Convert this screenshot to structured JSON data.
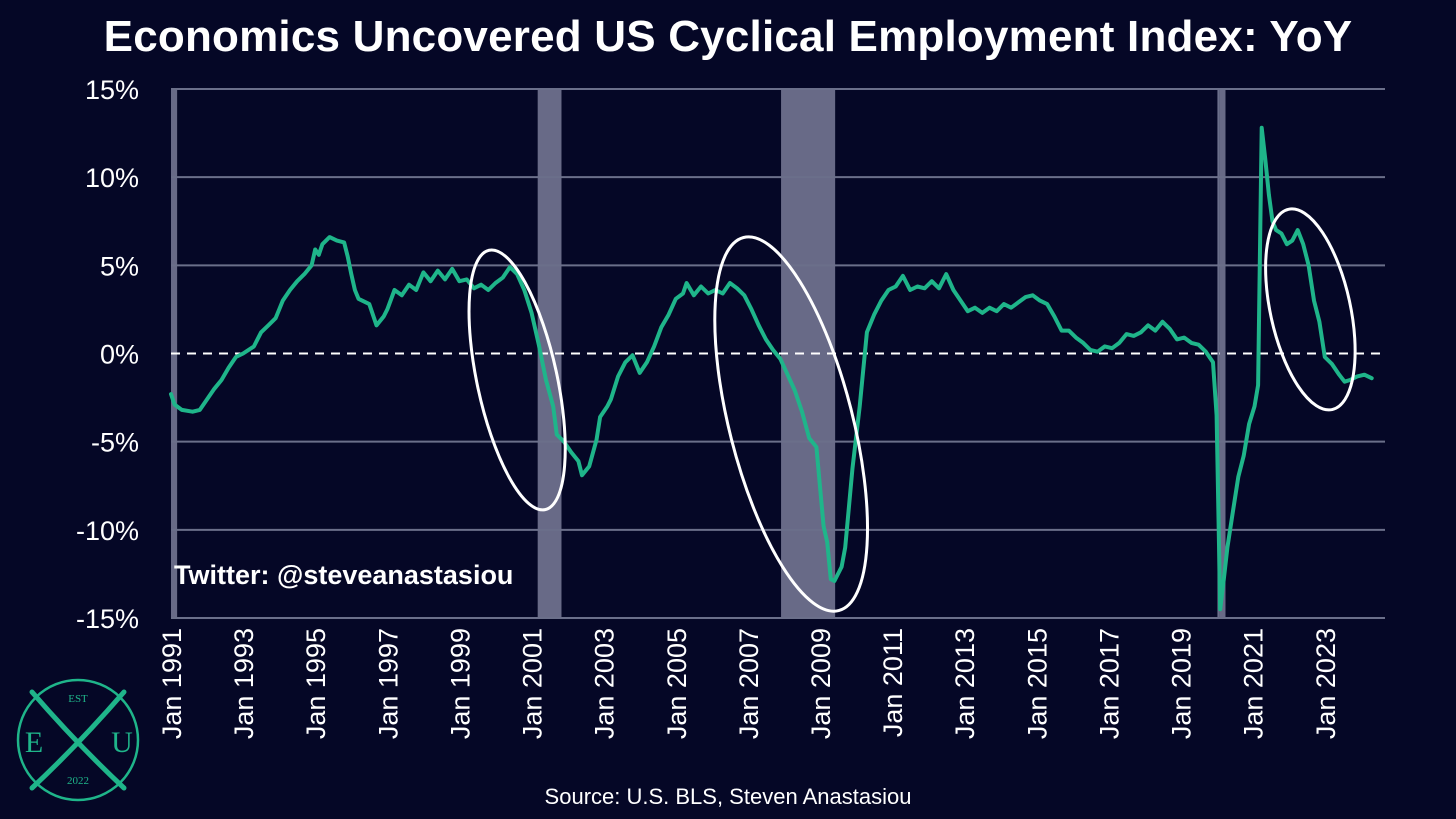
{
  "colors": {
    "background": "#050726",
    "line": "#1fb58a",
    "grid": "#6b6f8a",
    "recession_band": "#8a8ca8",
    "zero_line": "#ffffff",
    "ellipse": "#ffffff",
    "text": "#ffffff",
    "logo": "#1fb58a"
  },
  "handle": "Twitter: @steveanastasiou",
  "source": "Source: U.S. BLS, Steven Anastasiou",
  "logo": {
    "top": "EST",
    "left": "E",
    "right": "U",
    "bottom": "2022",
    "icon": "crossed-x-logo-icon"
  },
  "chart_data": {
    "type": "line",
    "title": "Economics Uncovered US Cyclical Employment Index: YoY",
    "xlabel": "",
    "ylabel": "",
    "ylim": [
      -15,
      15
    ],
    "xlim": [
      1991.0,
      2024.67
    ],
    "yticks": [
      15,
      10,
      5,
      0,
      -5,
      -10,
      -15
    ],
    "ytick_labels": [
      "15%",
      "10%",
      "5%",
      "0%",
      "-5%",
      "-10%",
      "-15%"
    ],
    "xticks": [
      1991,
      1993,
      1995,
      1997,
      1999,
      2001,
      2003,
      2005,
      2007,
      2009,
      2011,
      2013,
      2015,
      2017,
      2019,
      2021,
      2023
    ],
    "xtick_labels": [
      "Jan 1991",
      "Jan 1993",
      "Jan 1995",
      "Jan 1997",
      "Jan 1999",
      "Jan 2001",
      "Jan 2003",
      "Jan 2005",
      "Jan 2007",
      "Jan 2009",
      "Jan 2011",
      "Jan 2013",
      "Jan 2015",
      "Jan 2017",
      "Jan 2019",
      "Jan 2021",
      "Jan 2023"
    ],
    "grid": true,
    "zero_line": "dashed",
    "recession_bands": [
      [
        1991.0,
        1991.17
      ],
      [
        2001.17,
        2001.83
      ],
      [
        2007.92,
        2009.42
      ],
      [
        2020.08,
        2020.17
      ]
    ],
    "highlight_ellipses": [
      {
        "x_center": 2000.6,
        "y_center": -1.5,
        "x_span": [
          1999.3,
          2002.0
        ],
        "y_span": [
          -7.8,
          6.2
        ]
      },
      {
        "x_center": 2008.2,
        "y_center": -4.0,
        "x_span": [
          2006.0,
          2010.5
        ],
        "y_span": [
          -14.0,
          5.8
        ]
      },
      {
        "x_center": 2022.6,
        "y_center": 2.5,
        "x_span": [
          2021.5,
          2023.6
        ],
        "y_span": [
          -2.8,
          8.0
        ]
      }
    ],
    "series": [
      {
        "values": [
          [
            1991.0,
            -2.3
          ],
          [
            1991.1,
            -2.9
          ],
          [
            1991.3,
            -3.2
          ],
          [
            1991.6,
            -3.3
          ],
          [
            1991.8,
            -3.2
          ],
          [
            1992.0,
            -2.6
          ],
          [
            1992.2,
            -2.0
          ],
          [
            1992.4,
            -1.5
          ],
          [
            1992.6,
            -0.8
          ],
          [
            1992.8,
            -0.2
          ],
          [
            1993.0,
            0.0
          ],
          [
            1993.3,
            0.4
          ],
          [
            1993.5,
            1.2
          ],
          [
            1993.7,
            1.6
          ],
          [
            1993.9,
            2.0
          ],
          [
            1994.1,
            3.0
          ],
          [
            1994.3,
            3.6
          ],
          [
            1994.5,
            4.1
          ],
          [
            1994.7,
            4.5
          ],
          [
            1994.9,
            5.0
          ],
          [
            1995.0,
            5.9
          ],
          [
            1995.1,
            5.6
          ],
          [
            1995.2,
            6.2
          ],
          [
            1995.4,
            6.6
          ],
          [
            1995.6,
            6.4
          ],
          [
            1995.8,
            6.3
          ],
          [
            1995.9,
            5.5
          ],
          [
            1996.0,
            4.5
          ],
          [
            1996.1,
            3.6
          ],
          [
            1996.2,
            3.1
          ],
          [
            1996.5,
            2.8
          ],
          [
            1996.7,
            1.6
          ],
          [
            1996.9,
            2.1
          ],
          [
            1997.0,
            2.5
          ],
          [
            1997.2,
            3.6
          ],
          [
            1997.4,
            3.3
          ],
          [
            1997.6,
            3.9
          ],
          [
            1997.8,
            3.6
          ],
          [
            1998.0,
            4.6
          ],
          [
            1998.2,
            4.1
          ],
          [
            1998.4,
            4.7
          ],
          [
            1998.6,
            4.2
          ],
          [
            1998.8,
            4.8
          ],
          [
            1999.0,
            4.1
          ],
          [
            1999.2,
            4.2
          ],
          [
            1999.4,
            3.7
          ],
          [
            1999.6,
            3.9
          ],
          [
            1999.8,
            3.6
          ],
          [
            2000.0,
            4.0
          ],
          [
            2000.2,
            4.3
          ],
          [
            2000.4,
            4.9
          ],
          [
            2000.6,
            4.5
          ],
          [
            2000.8,
            3.6
          ],
          [
            2001.0,
            2.3
          ],
          [
            2001.2,
            0.5
          ],
          [
            2001.4,
            -1.5
          ],
          [
            2001.6,
            -3.0
          ],
          [
            2001.7,
            -4.6
          ],
          [
            2001.9,
            -5.0
          ],
          [
            2002.1,
            -5.6
          ],
          [
            2002.3,
            -6.1
          ],
          [
            2002.4,
            -6.9
          ],
          [
            2002.6,
            -6.4
          ],
          [
            2002.8,
            -4.9
          ],
          [
            2002.9,
            -3.6
          ],
          [
            2003.1,
            -3.0
          ],
          [
            2003.2,
            -2.6
          ],
          [
            2003.4,
            -1.3
          ],
          [
            2003.6,
            -0.5
          ],
          [
            2003.8,
            -0.1
          ],
          [
            2004.0,
            -1.1
          ],
          [
            2004.2,
            -0.5
          ],
          [
            2004.4,
            0.4
          ],
          [
            2004.6,
            1.5
          ],
          [
            2004.8,
            2.2
          ],
          [
            2005.0,
            3.1
          ],
          [
            2005.2,
            3.4
          ],
          [
            2005.3,
            4.0
          ],
          [
            2005.5,
            3.3
          ],
          [
            2005.7,
            3.8
          ],
          [
            2005.9,
            3.4
          ],
          [
            2006.1,
            3.6
          ],
          [
            2006.3,
            3.4
          ],
          [
            2006.5,
            4.0
          ],
          [
            2006.7,
            3.7
          ],
          [
            2006.9,
            3.3
          ],
          [
            2007.1,
            2.5
          ],
          [
            2007.3,
            1.6
          ],
          [
            2007.5,
            0.8
          ],
          [
            2007.7,
            0.2
          ],
          [
            2007.9,
            -0.3
          ],
          [
            2008.1,
            -1.2
          ],
          [
            2008.3,
            -2.1
          ],
          [
            2008.5,
            -3.3
          ],
          [
            2008.7,
            -4.8
          ],
          [
            2008.9,
            -5.3
          ],
          [
            2009.1,
            -9.8
          ],
          [
            2009.2,
            -10.7
          ],
          [
            2009.3,
            -12.8
          ],
          [
            2009.4,
            -12.9
          ],
          [
            2009.6,
            -12.1
          ],
          [
            2009.7,
            -11.0
          ],
          [
            2009.9,
            -6.5
          ],
          [
            2010.1,
            -3.0
          ],
          [
            2010.3,
            1.2
          ],
          [
            2010.5,
            2.2
          ],
          [
            2010.7,
            3.0
          ],
          [
            2010.9,
            3.6
          ],
          [
            2011.1,
            3.8
          ],
          [
            2011.3,
            4.4
          ],
          [
            2011.5,
            3.6
          ],
          [
            2011.7,
            3.8
          ],
          [
            2011.9,
            3.7
          ],
          [
            2012.1,
            4.1
          ],
          [
            2012.3,
            3.7
          ],
          [
            2012.5,
            4.5
          ],
          [
            2012.7,
            3.6
          ],
          [
            2012.9,
            3.0
          ],
          [
            2013.1,
            2.4
          ],
          [
            2013.3,
            2.6
          ],
          [
            2013.5,
            2.3
          ],
          [
            2013.7,
            2.6
          ],
          [
            2013.9,
            2.4
          ],
          [
            2014.1,
            2.8
          ],
          [
            2014.3,
            2.6
          ],
          [
            2014.5,
            2.9
          ],
          [
            2014.7,
            3.2
          ],
          [
            2014.9,
            3.3
          ],
          [
            2015.1,
            3.0
          ],
          [
            2015.3,
            2.8
          ],
          [
            2015.5,
            2.1
          ],
          [
            2015.7,
            1.3
          ],
          [
            2015.9,
            1.3
          ],
          [
            2016.1,
            0.9
          ],
          [
            2016.3,
            0.6
          ],
          [
            2016.5,
            0.2
          ],
          [
            2016.7,
            0.1
          ],
          [
            2016.9,
            0.4
          ],
          [
            2017.1,
            0.3
          ],
          [
            2017.3,
            0.6
          ],
          [
            2017.5,
            1.1
          ],
          [
            2017.7,
            1.0
          ],
          [
            2017.9,
            1.2
          ],
          [
            2018.1,
            1.6
          ],
          [
            2018.3,
            1.3
          ],
          [
            2018.5,
            1.8
          ],
          [
            2018.7,
            1.4
          ],
          [
            2018.9,
            0.8
          ],
          [
            2019.1,
            0.9
          ],
          [
            2019.3,
            0.6
          ],
          [
            2019.5,
            0.5
          ],
          [
            2019.7,
            0.1
          ],
          [
            2019.9,
            -0.5
          ],
          [
            2020.0,
            -3.5
          ],
          [
            2020.1,
            -14.5
          ],
          [
            2020.2,
            -12.8
          ],
          [
            2020.3,
            -11.0
          ],
          [
            2020.45,
            -9.0
          ],
          [
            2020.6,
            -7.0
          ],
          [
            2020.75,
            -5.8
          ],
          [
            2020.9,
            -4.0
          ],
          [
            2021.05,
            -3.0
          ],
          [
            2021.15,
            -1.8
          ],
          [
            2021.25,
            12.8
          ],
          [
            2021.35,
            11.0
          ],
          [
            2021.45,
            9.0
          ],
          [
            2021.55,
            7.5
          ],
          [
            2021.65,
            7.0
          ],
          [
            2021.8,
            6.8
          ],
          [
            2021.95,
            6.2
          ],
          [
            2022.1,
            6.4
          ],
          [
            2022.25,
            7.0
          ],
          [
            2022.4,
            6.2
          ],
          [
            2022.55,
            5.0
          ],
          [
            2022.7,
            3.0
          ],
          [
            2022.85,
            1.8
          ],
          [
            2023.0,
            -0.2
          ],
          [
            2023.2,
            -0.6
          ],
          [
            2023.4,
            -1.2
          ],
          [
            2023.55,
            -1.6
          ],
          [
            2023.7,
            -1.5
          ],
          [
            2023.9,
            -1.3
          ],
          [
            2024.1,
            -1.2
          ],
          [
            2024.3,
            -1.4
          ]
        ]
      }
    ]
  }
}
